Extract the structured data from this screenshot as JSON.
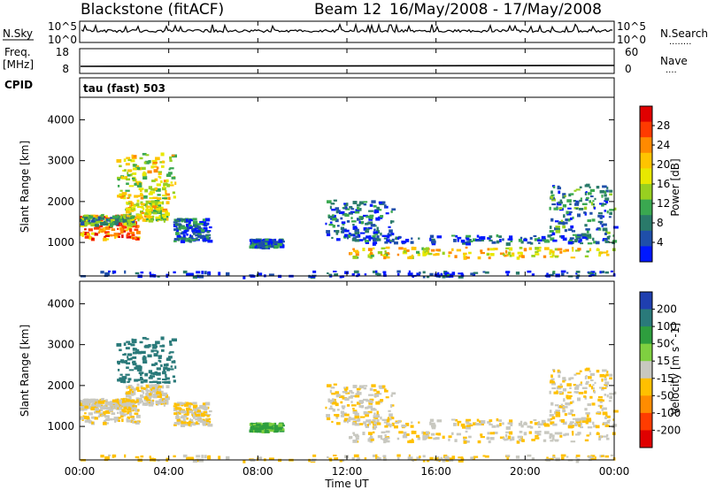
{
  "header": {
    "station": "Blackstone (fitACF)",
    "beam_label": "Beam 12",
    "date_range": "16/May/2008 - 17/May/2008"
  },
  "nsky_panel": {
    "left_label": "N.Sky",
    "right_label": "N.Search",
    "left_ticks": [
      "10^5",
      "10^0"
    ],
    "right_ticks": [
      "10^5",
      "10^0"
    ],
    "right_marker": "........"
  },
  "freq_panel": {
    "label_line1": "Freq.",
    "label_line2": "[MHz]",
    "left_ticks": [
      "18",
      "8"
    ],
    "right_label": "Nave",
    "right_ticks": [
      "60",
      "0"
    ],
    "right_marker": "...."
  },
  "cpid": {
    "label": "CPID",
    "value": "tau (fast) 503"
  },
  "power_scale": {
    "title": "Power [dB]",
    "labels": [
      "28",
      "24",
      "20",
      "16",
      "12",
      "8",
      "4"
    ],
    "colors": [
      "#e00000",
      "#ff3a00",
      "#ff8a00",
      "#ffc400",
      "#e8e800",
      "#98d020",
      "#3aa850",
      "#2a7a6a",
      "#1f4faa",
      "#0018ff"
    ]
  },
  "velocity_scale": {
    "title": "Velocity [m s^-1]",
    "labels": [
      "200",
      "100",
      "50",
      "15",
      "-15",
      "-50",
      "-100",
      "-200"
    ],
    "colors": [
      "#1f3fb0",
      "#2a7a7a",
      "#2e9e3e",
      "#7fd040",
      "#c8c8c0",
      "#ffc000",
      "#ff8c00",
      "#ff3c00",
      "#e00000"
    ]
  },
  "chart_data": {
    "type": "heatmap",
    "xlabel": "Time UT",
    "ylabel": "Slant Range [km]",
    "x_ticks": [
      "00:00",
      "04:00",
      "08:00",
      "12:00",
      "16:00",
      "20:00",
      "00:00"
    ],
    "y_ticks": [
      1000,
      2000,
      3000,
      4000
    ],
    "xlim_hours": [
      0,
      24
    ],
    "ylim_km": [
      180,
      4550
    ],
    "scatter_regions_hours_km": [
      {
        "t_start": 0.0,
        "t_end": 2.6,
        "r_low": 1100,
        "r_high": 1700,
        "power_db": 26,
        "velocity": -10
      },
      {
        "t_start": 0.0,
        "t_end": 2.4,
        "r_low": 1450,
        "r_high": 1700,
        "power_db": 12,
        "velocity": -10
      },
      {
        "t_start": 2.0,
        "t_end": 3.9,
        "r_low": 1550,
        "r_high": 2050,
        "power_db": 18,
        "velocity": -10
      },
      {
        "t_start": 1.6,
        "t_end": 4.3,
        "r_low": 2100,
        "r_high": 3200,
        "power_db": 18,
        "velocity": 120
      },
      {
        "t_start": 4.2,
        "t_end": 5.8,
        "r_low": 1050,
        "r_high": 1600,
        "power_db": 6,
        "velocity": -15
      },
      {
        "t_start": 7.6,
        "t_end": 9.0,
        "r_low": 900,
        "r_high": 1100,
        "power_db": 6,
        "velocity": 40
      },
      {
        "t_start": 11.0,
        "t_end": 14.0,
        "r_low": 1100,
        "r_high": 2050,
        "power_db": 6,
        "velocity": -10
      },
      {
        "t_start": 12.0,
        "t_end": 24.0,
        "r_low": 650,
        "r_high": 900,
        "power_db": 20,
        "velocity": -10
      },
      {
        "t_start": 12.0,
        "t_end": 24.0,
        "r_low": 1000,
        "r_high": 1200,
        "power_db": 6,
        "velocity": -10
      },
      {
        "t_start": 21.0,
        "t_end": 24.0,
        "r_low": 1200,
        "r_high": 2450,
        "power_db": 8,
        "velocity": -10
      },
      {
        "t_start": 0.0,
        "t_end": 24.0,
        "r_low": 180,
        "r_high": 320,
        "power_db": 4,
        "velocity": -20
      }
    ]
  }
}
